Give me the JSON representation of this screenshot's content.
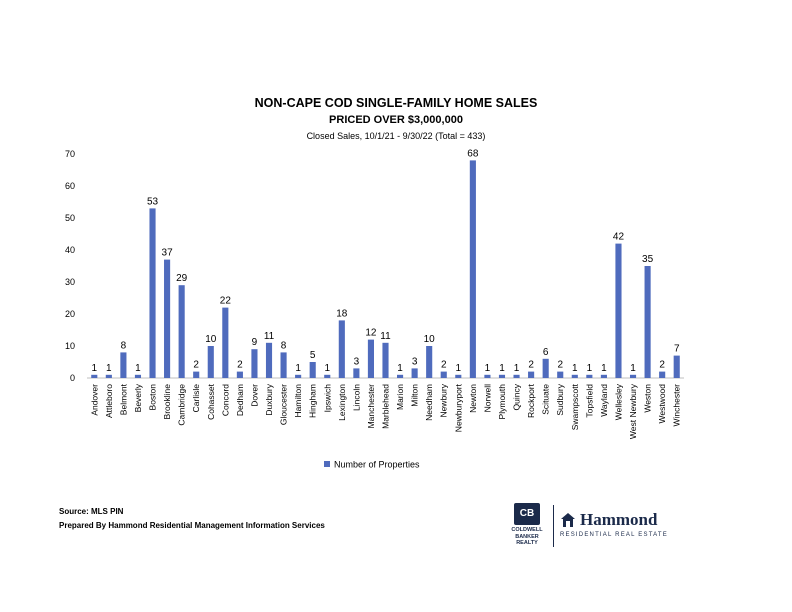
{
  "chart_data": {
    "type": "bar",
    "title": "NON-CAPE COD SINGLE-FAMILY HOME SALES",
    "subtitle": "PRICED OVER $3,000,000",
    "subtitle2": "Closed Sales, 10/1/21 - 9/30/22 (Total = 433)",
    "xlabel": "",
    "ylabel": "",
    "ylim": [
      0,
      70
    ],
    "yticks": [
      0,
      10,
      20,
      30,
      40,
      50,
      60,
      70
    ],
    "grid": false,
    "legend_position": "bottom",
    "bar_color": "#4f6bbd",
    "categories": [
      "Andover",
      "Attleboro",
      "Belmont",
      "Beverly",
      "Boston",
      "Brookline",
      "Cambridge",
      "Carlisle",
      "Cohasset",
      "Concord",
      "Dedham",
      "Dover",
      "Duxbury",
      "Gloucester",
      "Hamilton",
      "Hingham",
      "Ipswich",
      "Lexington",
      "Lincoln",
      "Manchester",
      "Marblehead",
      "Marion",
      "Milton",
      "Needham",
      "Newbury",
      "Newburyport",
      "Newton",
      "Norwell",
      "Plymouth",
      "Quincy",
      "Rockport",
      "Scituate",
      "Sudbury",
      "Swampscott",
      "Topsfield",
      "Wayland",
      "Wellesley",
      "West Newbury",
      "Weston",
      "Westwood",
      "Winchester"
    ],
    "series": [
      {
        "name": "Number of Properties",
        "values": [
          1,
          1,
          8,
          1,
          53,
          37,
          29,
          2,
          10,
          22,
          2,
          9,
          11,
          8,
          1,
          5,
          1,
          18,
          3,
          12,
          11,
          1,
          3,
          10,
          2,
          1,
          68,
          1,
          1,
          1,
          2,
          6,
          2,
          1,
          1,
          1,
          42,
          1,
          35,
          2,
          7
        ]
      }
    ]
  },
  "footer": {
    "source": "Source: MLS PIN",
    "prepared": "Prepared By Hammond Residential Management Information Services"
  },
  "logos": {
    "coldwell_mark": "CB",
    "coldwell_line1": "COLDWELL",
    "coldwell_line2": "BANKER",
    "coldwell_line3": "REALTY",
    "hammond_name": "Hammond",
    "hammond_tagline": "RESIDENTIAL REAL ESTATE"
  }
}
